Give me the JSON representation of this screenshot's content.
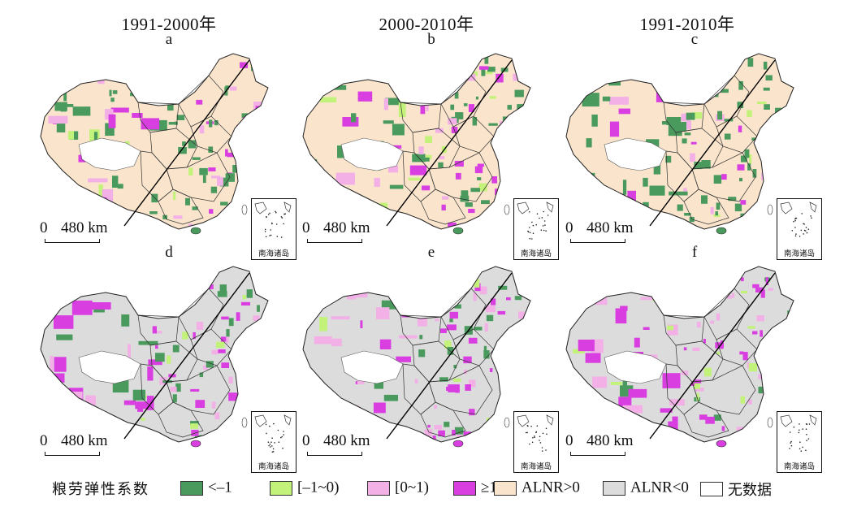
{
  "column_titles": [
    "1991-2000年",
    "2000-2010年",
    "1991-2010年"
  ],
  "panels": [
    {
      "letter": "a",
      "base_class": "ALNR>0"
    },
    {
      "letter": "b",
      "base_class": "ALNR>0"
    },
    {
      "letter": "c",
      "base_class": "ALNR>0"
    },
    {
      "letter": "d",
      "base_class": "ALNR<0"
    },
    {
      "letter": "e",
      "base_class": "ALNR<0"
    },
    {
      "letter": "f",
      "base_class": "ALNR<0"
    }
  ],
  "scale_bar": {
    "zero": "0",
    "distance": "480 km"
  },
  "inset_label": "南海诸岛",
  "legend": {
    "title": "粮劳弹性系数",
    "items": [
      {
        "label": "<–1",
        "color": "#4a9a5e"
      },
      {
        "label": "[–1~0)",
        "color": "#c3f27a"
      },
      {
        "label": "[0~1)",
        "color": "#f2b0e6"
      },
      {
        "label": "≥1",
        "color": "#d93ee0"
      }
    ],
    "base_items": [
      {
        "label": "ALNR>0",
        "color": "#fae5cc"
      },
      {
        "label": "ALNR<0",
        "color": "#dcdcdc"
      },
      {
        "label": "无数据",
        "color": "#ffffff"
      }
    ]
  }
}
